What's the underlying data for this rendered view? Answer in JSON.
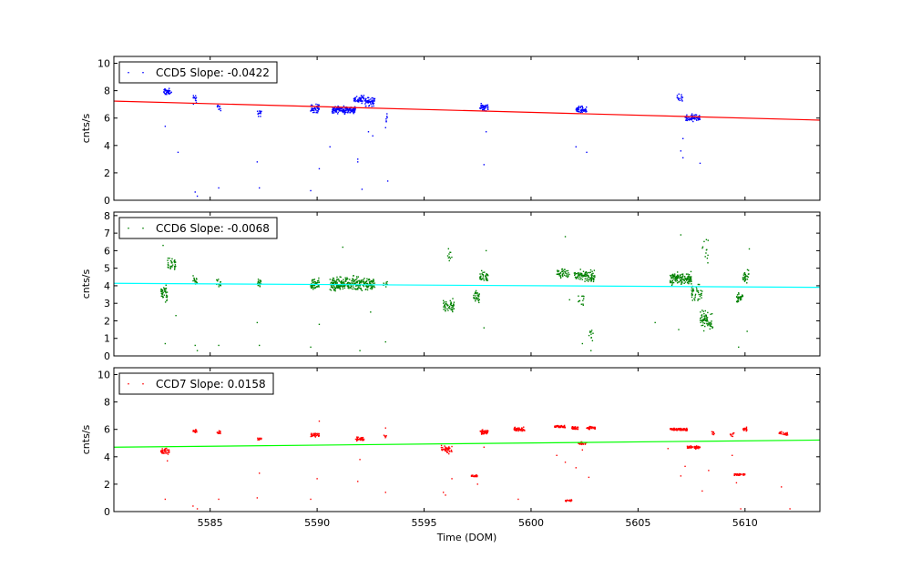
{
  "chart_data": [
    {
      "type": "scatter",
      "xlabel": "",
      "ylabel": "cnts/s",
      "xlim": [
        5580.5,
        5613.5
      ],
      "ylim": [
        0,
        10.5
      ],
      "yticks": [
        0,
        2,
        4,
        6,
        8,
        10
      ],
      "xticks": [
        5585,
        5590,
        5595,
        5600,
        5605,
        5610
      ],
      "show_xtick_labels": false,
      "legend": "top-left",
      "series": [
        {
          "name": "CCD5 Slope: -0.0422",
          "color": "#0000ff",
          "clusters": [
            {
              "x": [
                5582.8,
                5583.2
              ],
              "y": 7.9,
              "spread": 0.35,
              "n": 40
            },
            {
              "x": [
                5584.2,
                5584.4
              ],
              "y": 7.4,
              "spread": 0.5,
              "n": 14
            },
            {
              "x": [
                5585.3,
                5585.5
              ],
              "y": 6.7,
              "spread": 0.35,
              "n": 10
            },
            {
              "x": [
                5587.2,
                5587.4
              ],
              "y": 6.4,
              "spread": 0.4,
              "n": 14
            },
            {
              "x": [
                5589.7,
                5590.1
              ],
              "y": 6.7,
              "spread": 0.45,
              "n": 45
            },
            {
              "x": [
                5590.7,
                5591.8
              ],
              "y": 6.6,
              "spread": 0.35,
              "n": 170
            },
            {
              "x": [
                5591.7,
                5592.2
              ],
              "y": 7.4,
              "spread": 0.4,
              "n": 50
            },
            {
              "x": [
                5592.2,
                5592.7
              ],
              "y": 7.2,
              "spread": 0.45,
              "n": 55
            },
            {
              "x": [
                5593.1,
                5593.3
              ],
              "y": 6.0,
              "spread": 0.4,
              "n": 6
            },
            {
              "x": [
                5597.6,
                5598.0
              ],
              "y": 6.8,
              "spread": 0.4,
              "n": 40
            },
            {
              "x": [
                5602.1,
                5602.6
              ],
              "y": 6.6,
              "spread": 0.35,
              "n": 55
            },
            {
              "x": [
                5606.8,
                5607.1
              ],
              "y": 7.5,
              "spread": 0.35,
              "n": 16
            },
            {
              "x": [
                5607.2,
                5607.9
              ],
              "y": 6.0,
              "spread": 0.35,
              "n": 65
            }
          ],
          "outliers": [
            [
              5582.9,
              5.4
            ],
            [
              5583.5,
              3.5
            ],
            [
              5584.3,
              0.6
            ],
            [
              5584.4,
              0.3
            ],
            [
              5585.4,
              0.9
            ],
            [
              5587.3,
              0.9
            ],
            [
              5587.2,
              2.8
            ],
            [
              5589.7,
              0.7
            ],
            [
              5590.1,
              2.3
            ],
            [
              5590.6,
              3.9
            ],
            [
              5591.9,
              3.0
            ],
            [
              5591.9,
              2.8
            ],
            [
              5592.1,
              0.8
            ],
            [
              5592.4,
              5.0
            ],
            [
              5592.6,
              4.7
            ],
            [
              5593.3,
              1.4
            ],
            [
              5593.2,
              5.3
            ],
            [
              5597.8,
              2.6
            ],
            [
              5597.9,
              5.0
            ],
            [
              5602.1,
              3.9
            ],
            [
              5602.6,
              3.5
            ],
            [
              5607.0,
              3.6
            ],
            [
              5607.1,
              3.1
            ],
            [
              5607.9,
              2.7
            ],
            [
              5607.1,
              4.5
            ]
          ],
          "fit": {
            "x": [
              5580.5,
              5613.5
            ],
            "y": [
              7.24,
              5.85
            ],
            "color": "#ff0000"
          }
        }
      ]
    },
    {
      "type": "scatter",
      "xlabel": "",
      "ylabel": "cnts/s",
      "xlim": [
        5580.5,
        5613.5
      ],
      "ylim": [
        0,
        8.2
      ],
      "yticks": [
        0,
        1,
        2,
        3,
        4,
        5,
        6,
        7,
        8
      ],
      "xticks": [
        5585,
        5590,
        5595,
        5600,
        5605,
        5610
      ],
      "show_xtick_labels": false,
      "legend": "top-left",
      "series": [
        {
          "name": "CCD6 Slope: -0.0068",
          "color": "#008000",
          "clusters": [
            {
              "x": [
                5582.7,
                5583.0
              ],
              "y": 3.5,
              "spread": 0.7,
              "n": 40
            },
            {
              "x": [
                5583.0,
                5583.4
              ],
              "y": 5.2,
              "spread": 0.5,
              "n": 35
            },
            {
              "x": [
                5584.2,
                5584.4
              ],
              "y": 4.3,
              "spread": 0.5,
              "n": 18
            },
            {
              "x": [
                5585.3,
                5585.5
              ],
              "y": 4.1,
              "spread": 0.4,
              "n": 15
            },
            {
              "x": [
                5587.2,
                5587.4
              ],
              "y": 4.1,
              "spread": 0.4,
              "n": 18
            },
            {
              "x": [
                5589.7,
                5590.1
              ],
              "y": 4.1,
              "spread": 0.5,
              "n": 50
            },
            {
              "x": [
                5590.6,
                5592.7
              ],
              "y": 4.1,
              "spread": 0.55,
              "n": 280
            },
            {
              "x": [
                5593.1,
                5593.3
              ],
              "y": 4.1,
              "spread": 0.3,
              "n": 8
            },
            {
              "x": [
                5595.9,
                5596.4
              ],
              "y": 2.9,
              "spread": 0.6,
              "n": 50
            },
            {
              "x": [
                5596.1,
                5596.3
              ],
              "y": 5.8,
              "spread": 0.7,
              "n": 10
            },
            {
              "x": [
                5597.3,
                5597.6
              ],
              "y": 3.4,
              "spread": 0.5,
              "n": 30
            },
            {
              "x": [
                5597.6,
                5598.0
              ],
              "y": 4.5,
              "spread": 0.5,
              "n": 35
            },
            {
              "x": [
                5601.2,
                5601.8
              ],
              "y": 4.7,
              "spread": 0.4,
              "n": 45
            },
            {
              "x": [
                5602.0,
                5602.6
              ],
              "y": 4.6,
              "spread": 0.45,
              "n": 55
            },
            {
              "x": [
                5602.2,
                5602.5
              ],
              "y": 3.2,
              "spread": 0.5,
              "n": 12
            },
            {
              "x": [
                5602.6,
                5603.0
              ],
              "y": 4.5,
              "spread": 0.5,
              "n": 45
            },
            {
              "x": [
                5602.7,
                5602.9
              ],
              "y": 1.3,
              "spread": 0.5,
              "n": 10
            },
            {
              "x": [
                5606.5,
                5607.5
              ],
              "y": 4.4,
              "spread": 0.5,
              "n": 140
            },
            {
              "x": [
                5607.5,
                5608.0
              ],
              "y": 3.6,
              "spread": 0.6,
              "n": 40
            },
            {
              "x": [
                5607.9,
                5608.5
              ],
              "y": 2.0,
              "spread": 0.8,
              "n": 70
            },
            {
              "x": [
                5608.0,
                5608.3
              ],
              "y": 6.0,
              "spread": 1.2,
              "n": 12
            },
            {
              "x": [
                5609.6,
                5609.9
              ],
              "y": 3.3,
              "spread": 0.4,
              "n": 35
            },
            {
              "x": [
                5609.9,
                5610.2
              ],
              "y": 4.6,
              "spread": 0.5,
              "n": 30
            }
          ],
          "outliers": [
            [
              5582.9,
              0.7
            ],
            [
              5582.8,
              6.3
            ],
            [
              5583.4,
              2.3
            ],
            [
              5584.3,
              0.6
            ],
            [
              5584.4,
              0.3
            ],
            [
              5585.4,
              0.6
            ],
            [
              5587.3,
              0.6
            ],
            [
              5587.2,
              1.9
            ],
            [
              5589.7,
              0.5
            ],
            [
              5590.1,
              1.8
            ],
            [
              5591.2,
              6.2
            ],
            [
              5592.0,
              0.3
            ],
            [
              5592.5,
              2.5
            ],
            [
              5593.2,
              0.8
            ],
            [
              5597.8,
              1.6
            ],
            [
              5597.9,
              6.0
            ],
            [
              5601.6,
              6.8
            ],
            [
              5601.8,
              3.2
            ],
            [
              5602.4,
              0.7
            ],
            [
              5602.8,
              0.3
            ],
            [
              5605.8,
              1.9
            ],
            [
              5606.9,
              1.5
            ],
            [
              5607.0,
              6.9
            ],
            [
              5609.7,
              0.5
            ],
            [
              5610.2,
              6.1
            ],
            [
              5610.1,
              1.4
            ]
          ],
          "fit": {
            "x": [
              5580.5,
              5613.5
            ],
            "y": [
              4.14,
              3.91
            ],
            "color": "#00ffff"
          }
        }
      ]
    },
    {
      "type": "scatter",
      "xlabel": "Time (DOM)",
      "ylabel": "cnts/s",
      "xlim": [
        5580.5,
        5613.5
      ],
      "ylim": [
        0,
        10.5
      ],
      "yticks": [
        0,
        2,
        4,
        6,
        8,
        10
      ],
      "xticks": [
        5585,
        5590,
        5595,
        5600,
        5605,
        5610
      ],
      "show_xtick_labels": true,
      "legend": "top-left",
      "series": [
        {
          "name": "CCD7 Slope: 0.0158",
          "color": "#ff0000",
          "clusters": [
            {
              "x": [
                5582.7,
                5583.1
              ],
              "y": 4.4,
              "spread": 0.3,
              "n": 40
            },
            {
              "x": [
                5584.2,
                5584.4
              ],
              "y": 5.9,
              "spread": 0.2,
              "n": 15
            },
            {
              "x": [
                5585.3,
                5585.5
              ],
              "y": 5.8,
              "spread": 0.2,
              "n": 15
            },
            {
              "x": [
                5587.2,
                5587.4
              ],
              "y": 5.3,
              "spread": 0.2,
              "n": 15
            },
            {
              "x": [
                5589.7,
                5590.1
              ],
              "y": 5.6,
              "spread": 0.2,
              "n": 40
            },
            {
              "x": [
                5591.8,
                5592.2
              ],
              "y": 5.3,
              "spread": 0.2,
              "n": 40
            },
            {
              "x": [
                5593.1,
                5593.3
              ],
              "y": 5.5,
              "spread": 0.3,
              "n": 6
            },
            {
              "x": [
                5595.8,
                5596.3
              ],
              "y": 4.5,
              "spread": 0.4,
              "n": 45
            },
            {
              "x": [
                5597.2,
                5597.5
              ],
              "y": 2.6,
              "spread": 0.12,
              "n": 25
            },
            {
              "x": [
                5597.6,
                5598.0
              ],
              "y": 5.8,
              "spread": 0.2,
              "n": 50
            },
            {
              "x": [
                5599.2,
                5599.7
              ],
              "y": 6.0,
              "spread": 0.2,
              "n": 50
            },
            {
              "x": [
                5601.1,
                5601.6
              ],
              "y": 6.2,
              "spread": 0.15,
              "n": 55
            },
            {
              "x": [
                5601.6,
                5601.9
              ],
              "y": 0.8,
              "spread": 0.08,
              "n": 20
            },
            {
              "x": [
                5601.9,
                5602.2
              ],
              "y": 6.1,
              "spread": 0.15,
              "n": 30
            },
            {
              "x": [
                5602.2,
                5602.6
              ],
              "y": 5.0,
              "spread": 0.15,
              "n": 30
            },
            {
              "x": [
                5602.6,
                5603.0
              ],
              "y": 6.1,
              "spread": 0.15,
              "n": 35
            },
            {
              "x": [
                5606.5,
                5607.3
              ],
              "y": 6.0,
              "spread": 0.15,
              "n": 90
            },
            {
              "x": [
                5607.3,
                5607.9
              ],
              "y": 4.7,
              "spread": 0.15,
              "n": 50
            },
            {
              "x": [
                5608.4,
                5608.6
              ],
              "y": 5.7,
              "spread": 0.3,
              "n": 8
            },
            {
              "x": [
                5609.3,
                5609.5
              ],
              "y": 5.6,
              "spread": 0.3,
              "n": 10
            },
            {
              "x": [
                5609.5,
                5610.0
              ],
              "y": 2.7,
              "spread": 0.1,
              "n": 45
            },
            {
              "x": [
                5609.9,
                5610.1
              ],
              "y": 6.0,
              "spread": 0.2,
              "n": 15
            },
            {
              "x": [
                5611.6,
                5612.0
              ],
              "y": 5.7,
              "spread": 0.2,
              "n": 30
            }
          ],
          "outliers": [
            [
              5582.9,
              0.9
            ],
            [
              5583.0,
              3.7
            ],
            [
              5584.2,
              0.4
            ],
            [
              5584.4,
              0.2
            ],
            [
              5585.4,
              0.9
            ],
            [
              5587.2,
              1.0
            ],
            [
              5587.3,
              2.8
            ],
            [
              5589.7,
              0.9
            ],
            [
              5590.1,
              6.6
            ],
            [
              5590.0,
              2.4
            ],
            [
              5591.9,
              2.2
            ],
            [
              5592.0,
              3.8
            ],
            [
              5593.2,
              1.4
            ],
            [
              5593.2,
              6.1
            ],
            [
              5595.9,
              1.4
            ],
            [
              5596.0,
              1.2
            ],
            [
              5596.3,
              2.4
            ],
            [
              5597.5,
              2.0
            ],
            [
              5597.8,
              4.7
            ],
            [
              5599.4,
              0.9
            ],
            [
              5601.2,
              4.1
            ],
            [
              5601.6,
              3.6
            ],
            [
              5602.1,
              3.2
            ],
            [
              5602.4,
              4.5
            ],
            [
              5602.7,
              2.5
            ],
            [
              5606.4,
              4.6
            ],
            [
              5607.0,
              2.6
            ],
            [
              5607.2,
              3.3
            ],
            [
              5608.0,
              1.5
            ],
            [
              5608.3,
              3.0
            ],
            [
              5609.4,
              4.1
            ],
            [
              5609.6,
              2.1
            ],
            [
              5609.8,
              0.2
            ],
            [
              5611.7,
              1.8
            ],
            [
              5612.1,
              0.2
            ]
          ],
          "fit": {
            "x": [
              5580.5,
              5613.5
            ],
            "y": [
              4.7,
              5.22
            ],
            "color": "#00ff00"
          }
        }
      ]
    }
  ]
}
